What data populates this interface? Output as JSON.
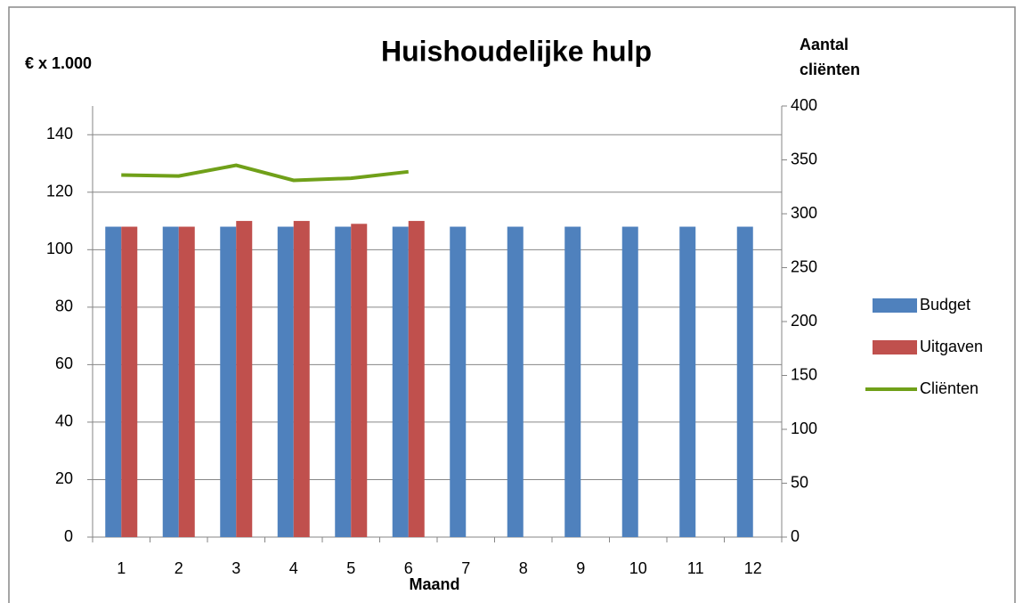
{
  "chart_data": {
    "type": "bar",
    "title": "Huishoudelijke hulp",
    "y_label": "€ x 1.000",
    "y2_label": "Aantal cliënten",
    "x_label": "Maand",
    "categories": [
      "1",
      "2",
      "3",
      "4",
      "5",
      "6",
      "7",
      "8",
      "9",
      "10",
      "11",
      "12"
    ],
    "series": [
      {
        "name": "Budget",
        "color": "#4f81bd",
        "type": "bar",
        "values": [
          108,
          108,
          108,
          108,
          108,
          108,
          108,
          108,
          108,
          108,
          108,
          108
        ]
      },
      {
        "name": "Uitgaven",
        "color": "#c0504d",
        "type": "bar",
        "values": [
          108,
          108,
          110,
          110,
          109,
          110,
          null,
          null,
          null,
          null,
          null,
          null
        ]
      },
      {
        "name": "Cliënten",
        "color": "#70a019",
        "type": "line",
        "axis": "y2",
        "values": [
          336,
          335,
          345,
          331,
          333,
          339,
          null,
          null,
          null,
          null,
          null,
          null
        ]
      }
    ],
    "ylim": [
      0,
      150
    ],
    "yticks": [
      0,
      20,
      40,
      60,
      80,
      100,
      120,
      140
    ],
    "y2lim": [
      0,
      400
    ],
    "y2ticks": [
      0,
      50,
      100,
      150,
      200,
      250,
      300,
      350,
      400
    ],
    "grid": true,
    "legend": "right"
  }
}
